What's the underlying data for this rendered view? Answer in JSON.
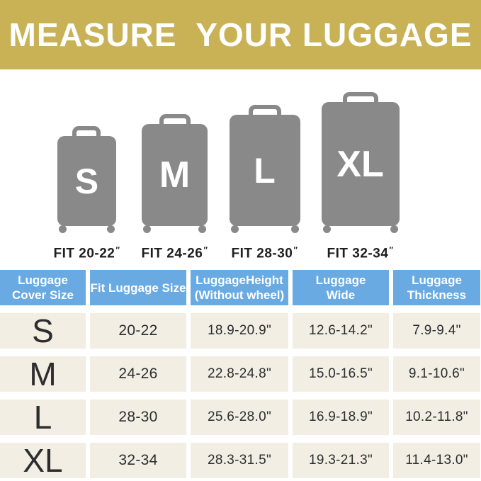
{
  "banner": {
    "title": "MEASURE  YOUR LUGGAGE",
    "background_color": "#c8b255",
    "text_color": "#ffffff"
  },
  "lineup": {
    "suitcase_color": "#898989",
    "items": [
      {
        "letter": "S",
        "fit_label": "FIT 20-22",
        "inch_mark": "″"
      },
      {
        "letter": "M",
        "fit_label": "FIT 24-26",
        "inch_mark": "″"
      },
      {
        "letter": "L",
        "fit_label": "FIT 28-30",
        "inch_mark": "″"
      },
      {
        "letter": "XL",
        "fit_label": "FIT 32-34",
        "inch_mark": "″"
      }
    ]
  },
  "table": {
    "header_bg": "#68aae1",
    "row_bg": "#f3eee4",
    "columns": [
      "Luggage\nCover Size",
      "Fit Luggage Size",
      "LuggageHeight\n(Without wheel)",
      "Luggage\nWide",
      "Luggage\nThickness"
    ],
    "rows": [
      [
        "S",
        "20-22",
        "18.9-20.9\"",
        "12.6-14.2\"",
        "7.9-9.4\""
      ],
      [
        "M",
        "24-26",
        "22.8-24.8\"",
        "15.0-16.5\"",
        "9.1-10.6\""
      ],
      [
        "L",
        "28-30",
        "25.6-28.0\"",
        "16.9-18.9\"",
        "10.2-11.8\""
      ],
      [
        "XL",
        "32-34",
        "28.3-31.5\"",
        "19.3-21.3\"",
        "11.4-13.0\""
      ]
    ]
  },
  "chart_data": {
    "type": "table",
    "title": "MEASURE  YOUR LUGGAGE",
    "columns": [
      "Luggage Cover Size",
      "Fit Luggage Size",
      "LuggageHeight (Without wheel)",
      "Luggage Wide",
      "Luggage Thickness"
    ],
    "rows": [
      [
        "S",
        "20-22",
        "18.9-20.9\"",
        "12.6-14.2\"",
        "7.9-9.4\""
      ],
      [
        "M",
        "24-26",
        "22.8-24.8\"",
        "15.0-16.5\"",
        "9.1-10.6\""
      ],
      [
        "L",
        "28-30",
        "25.6-28.0\"",
        "16.9-18.9\"",
        "10.2-11.8\""
      ],
      [
        "XL",
        "32-34",
        "28.3-31.5\"",
        "19.3-21.3\"",
        "11.4-13.0\""
      ]
    ],
    "icon_labels": [
      "FIT 20-22″",
      "FIT 24-26″",
      "FIT 28-30″",
      "FIT 32-34″"
    ],
    "layout": "header banner, 4 suitcase size icons, 5-column size table"
  }
}
